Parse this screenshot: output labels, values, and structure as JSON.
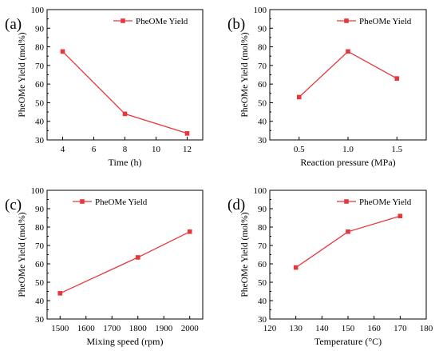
{
  "accent": "#e8373a",
  "chart_data": [
    {
      "type": "line",
      "panel_label": "(a)",
      "xlabel": "Time (h)",
      "ylabel": "PheOMe Yield (mol%)",
      "legend": "PheOMe Yield",
      "legend_position": "top-right",
      "grid": false,
      "xlim": [
        3,
        13
      ],
      "ylim": [
        30,
        100
      ],
      "xticks": [
        "4",
        "6",
        "8",
        "10",
        "12"
      ],
      "xtick_values": [
        4,
        6,
        8,
        10,
        12
      ],
      "yticks": [
        "30",
        "40",
        "50",
        "60",
        "70",
        "80",
        "90",
        "100"
      ],
      "ytick_values": [
        30,
        40,
        50,
        60,
        70,
        80,
        90,
        100
      ],
      "series": [
        {
          "name": "PheOMe Yield",
          "x": [
            4,
            8,
            12
          ],
          "y": [
            77.5,
            44,
            33.5
          ]
        }
      ]
    },
    {
      "type": "line",
      "panel_label": "(b)",
      "xlabel": "Reaction pressure (MPa)",
      "ylabel": "PheOMe Yield (mol%)",
      "legend": "PheOMe Yield",
      "legend_position": "top-right",
      "grid": false,
      "xlim": [
        0.2,
        1.8
      ],
      "ylim": [
        30,
        100
      ],
      "xticks": [
        "0.5",
        "1.0",
        "1.5"
      ],
      "xtick_values": [
        0.5,
        1.0,
        1.5
      ],
      "yticks": [
        "30",
        "40",
        "50",
        "60",
        "70",
        "80",
        "90",
        "100"
      ],
      "ytick_values": [
        30,
        40,
        50,
        60,
        70,
        80,
        90,
        100
      ],
      "series": [
        {
          "name": "PheOMe Yield",
          "x": [
            0.5,
            1.0,
            1.5
          ],
          "y": [
            53,
            77.5,
            63
          ]
        }
      ]
    },
    {
      "type": "line",
      "panel_label": "(c)",
      "xlabel": "Mixing speed (rpm)",
      "ylabel": "PheOMe Yield (mol%)",
      "legend": "PheOMe Yield",
      "legend_position": "top-left",
      "grid": false,
      "xlim": [
        1450,
        2050
      ],
      "ylim": [
        30,
        100
      ],
      "xticks": [
        "1500",
        "1600",
        "1700",
        "1800",
        "1900",
        "2000"
      ],
      "xtick_values": [
        1500,
        1600,
        1700,
        1800,
        1900,
        2000
      ],
      "yticks": [
        "30",
        "40",
        "50",
        "60",
        "70",
        "80",
        "90",
        "100"
      ],
      "ytick_values": [
        30,
        40,
        50,
        60,
        70,
        80,
        90,
        100
      ],
      "series": [
        {
          "name": "PheOMe Yield",
          "x": [
            1500,
            1800,
            2000
          ],
          "y": [
            44,
            63.5,
            77.5
          ]
        }
      ]
    },
    {
      "type": "line",
      "panel_label": "(d)",
      "xlabel": "Temperature (°C)",
      "ylabel": "PheOMe Yield (mol%)",
      "legend": "PheOMe Yield",
      "legend_position": "top-right",
      "grid": false,
      "xlim": [
        120,
        180
      ],
      "ylim": [
        30,
        100
      ],
      "xticks": [
        "120",
        "130",
        "140",
        "150",
        "160",
        "170",
        "180"
      ],
      "xtick_values": [
        120,
        130,
        140,
        150,
        160,
        170,
        180
      ],
      "yticks": [
        "30",
        "40",
        "50",
        "60",
        "70",
        "80",
        "90",
        "100"
      ],
      "ytick_values": [
        30,
        40,
        50,
        60,
        70,
        80,
        90,
        100
      ],
      "series": [
        {
          "name": "PheOMe Yield",
          "x": [
            130,
            150,
            170
          ],
          "y": [
            58,
            77.5,
            86
          ]
        }
      ]
    }
  ]
}
